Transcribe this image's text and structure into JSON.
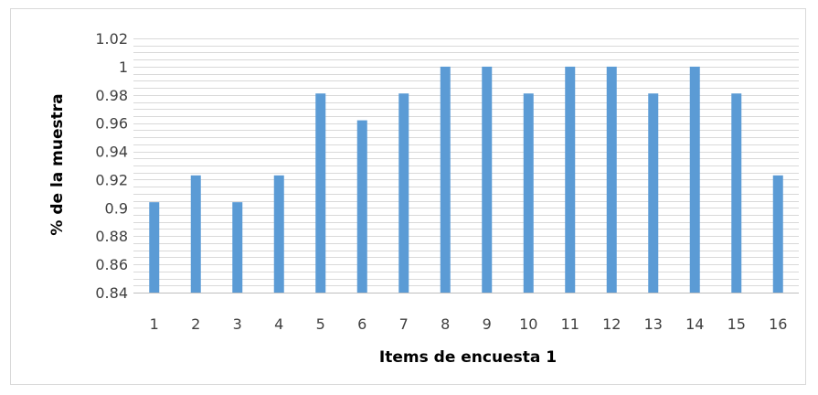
{
  "chart_data": {
    "type": "bar",
    "categories": [
      "1",
      "2",
      "3",
      "4",
      "5",
      "6",
      "7",
      "8",
      "9",
      "10",
      "11",
      "12",
      "13",
      "14",
      "15",
      "16"
    ],
    "values": [
      0.904,
      0.923,
      0.904,
      0.923,
      0.981,
      0.962,
      0.981,
      1.0,
      1.0,
      0.981,
      1.0,
      1.0,
      0.981,
      1.0,
      0.981,
      0.923
    ],
    "xlabel": "Items de encuesta 1",
    "ylabel": "% de la muestra",
    "ylim": [
      0.84,
      1.02
    ],
    "y_ticks": [
      "0.84",
      "0.86",
      "0.88",
      "0.9",
      "0.92",
      "0.94",
      "0.96",
      "0.98",
      "1",
      "1.02"
    ],
    "grid": true,
    "legend": "none",
    "bar_color": "#5b9bd5",
    "grid_color": "#d9d9d9"
  }
}
